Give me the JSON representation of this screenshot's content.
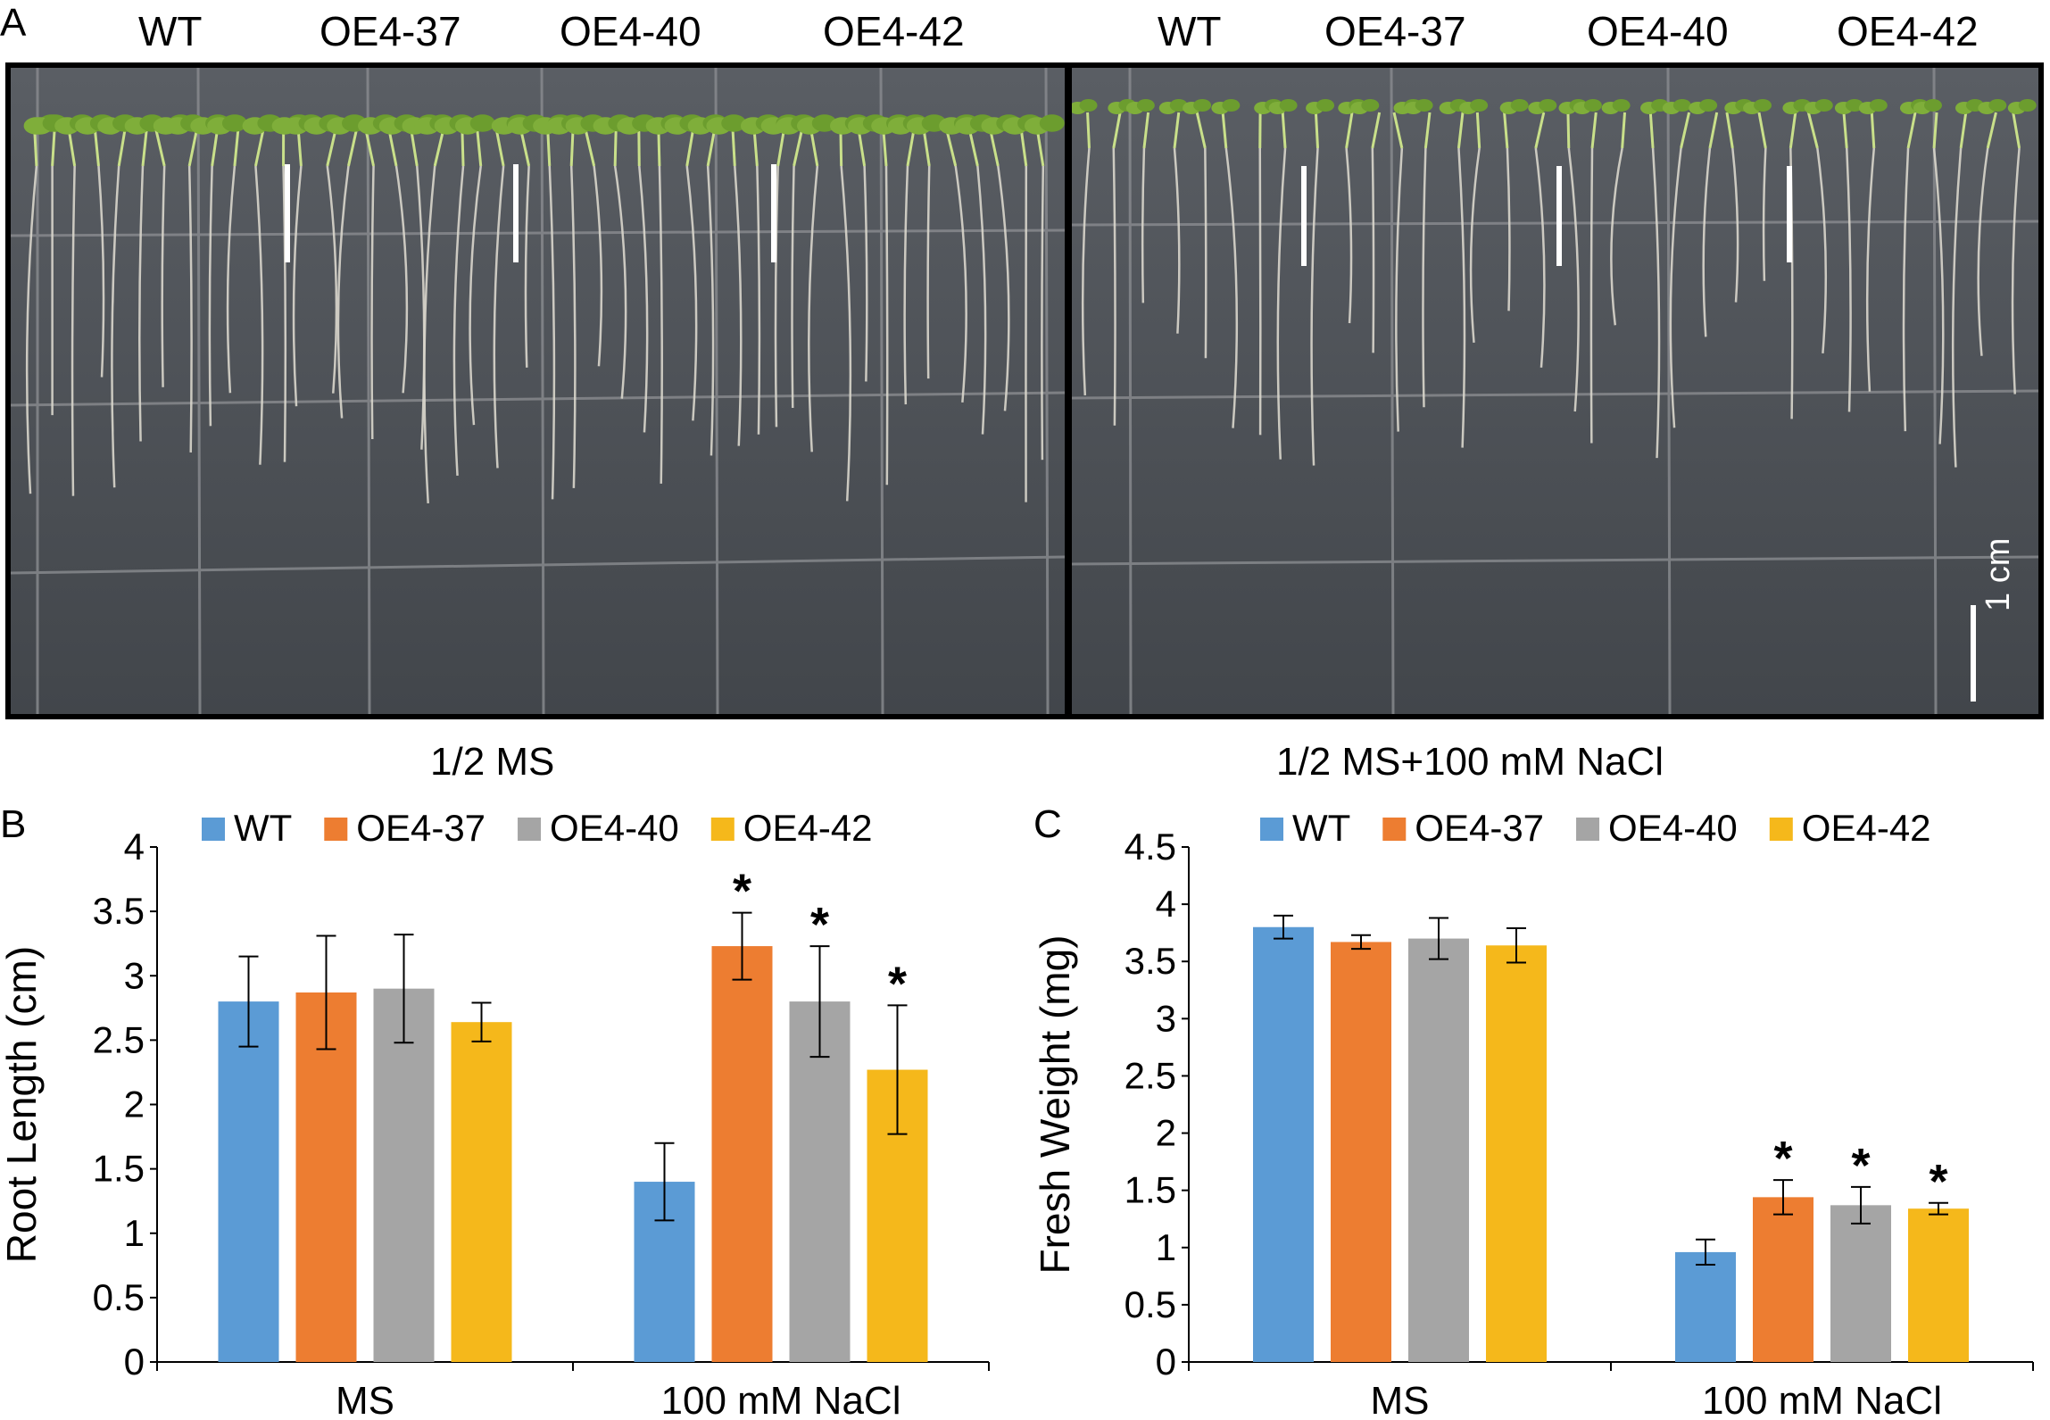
{
  "panel_a": {
    "letter": "A",
    "left_genotypes": [
      "WT",
      "OE4-37",
      "OE4-40",
      "OE4-42"
    ],
    "right_genotypes": [
      "WT",
      "OE4-37",
      "OE4-40",
      "OE4-42"
    ],
    "left_condition": "1/2 MS",
    "right_condition": "1/2 MS+100 mM NaCl",
    "scale_bar": "1 cm"
  },
  "colors": {
    "WT": "#5b9bd5",
    "OE4-37": "#ed7d31",
    "OE4-40": "#a5a5a5",
    "OE4-42": "#f5b81b"
  },
  "chart_data": [
    {
      "panel": "B",
      "type": "bar",
      "title": "",
      "xlabel": "",
      "ylabel": "Root Length (cm)",
      "categories": [
        "MS",
        "100 mM NaCl"
      ],
      "ylim": [
        0,
        4
      ],
      "yticks": [
        "0",
        "0.5",
        "1",
        "1.5",
        "2",
        "2.5",
        "3",
        "3.5",
        "4"
      ],
      "legend": "top",
      "series": [
        {
          "name": "WT",
          "values": [
            2.8,
            1.4
          ],
          "errors": [
            0.35,
            0.3
          ],
          "sig": [
            "",
            ""
          ]
        },
        {
          "name": "OE4-37",
          "values": [
            2.87,
            3.23
          ],
          "errors": [
            0.44,
            0.26
          ],
          "sig": [
            "",
            "*"
          ]
        },
        {
          "name": "OE4-40",
          "values": [
            2.9,
            2.8
          ],
          "errors": [
            0.42,
            0.43
          ],
          "sig": [
            "",
            "*"
          ]
        },
        {
          "name": "OE4-42",
          "values": [
            2.64,
            2.27
          ],
          "errors": [
            0.15,
            0.5
          ],
          "sig": [
            "",
            "*"
          ]
        }
      ]
    },
    {
      "panel": "C",
      "type": "bar",
      "title": "",
      "xlabel": "",
      "ylabel": "Fresh Weight (mg)",
      "categories": [
        "MS",
        "100 mM NaCl"
      ],
      "ylim": [
        0,
        4.5
      ],
      "yticks": [
        "0",
        "0.5",
        "1",
        "1.5",
        "2",
        "2.5",
        "3",
        "3.5",
        "4",
        "4.5"
      ],
      "legend": "top",
      "series": [
        {
          "name": "WT",
          "values": [
            3.8,
            0.96
          ],
          "errors": [
            0.1,
            0.11
          ],
          "sig": [
            "",
            ""
          ]
        },
        {
          "name": "OE4-37",
          "values": [
            3.67,
            1.44
          ],
          "errors": [
            0.06,
            0.15
          ],
          "sig": [
            "",
            "*"
          ]
        },
        {
          "name": "OE4-40",
          "values": [
            3.7,
            1.37
          ],
          "errors": [
            0.18,
            0.16
          ],
          "sig": [
            "",
            "*"
          ]
        },
        {
          "name": "OE4-42",
          "values": [
            3.64,
            1.34
          ],
          "errors": [
            0.15,
            0.05
          ],
          "sig": [
            "",
            "*"
          ]
        }
      ]
    }
  ]
}
